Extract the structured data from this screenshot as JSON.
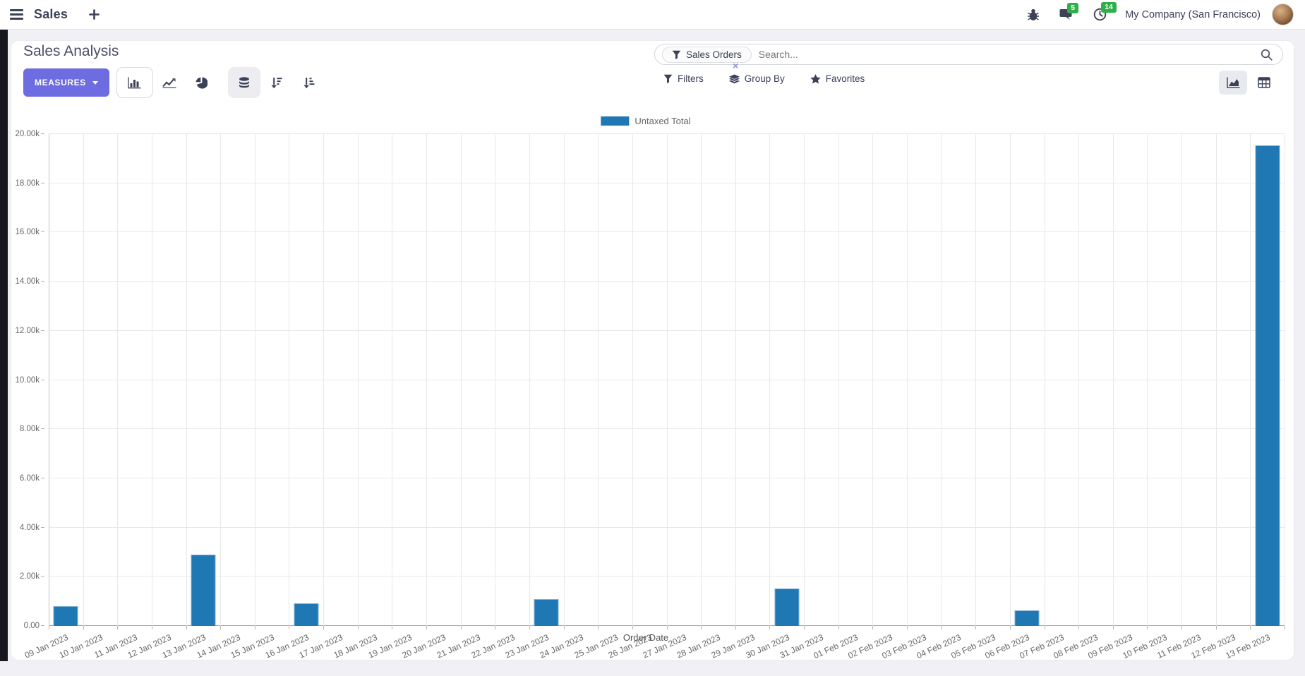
{
  "topbar": {
    "app_name": "Sales",
    "plus": "+",
    "messages_badge": "5",
    "activities_badge": "14",
    "company_name": "My Company (San Francisco)"
  },
  "control_panel": {
    "title": "Sales Analysis",
    "measures_button": "MEASURES",
    "search": {
      "facet_label": "Sales Orders",
      "facet_remove": "×",
      "placeholder": "Search..."
    },
    "filters_label": "Filters",
    "group_by_label": "Group By",
    "favorites_label": "Favorites"
  },
  "icons": {
    "topbar": [
      "hamburger-icon",
      "plus-icon",
      "bug-icon",
      "messages-icon",
      "activities-clock-icon",
      "avatar"
    ],
    "toolbar": [
      "bar-chart-icon",
      "line-chart-icon",
      "pie-chart-icon",
      "stacked-icon",
      "sort-desc-icon",
      "sort-asc-icon"
    ],
    "search": [
      "filter-funnel-icon",
      "search-icon",
      "group-by-layers-icon",
      "favorites-star-icon"
    ],
    "view_switcher": [
      "area-chart-view-icon",
      "pivot-view-icon"
    ]
  },
  "colors": {
    "accent_button": "#6d6ce0",
    "bar": "#1f77b4",
    "badge_green": "#2fae49",
    "topbar_text": "#3b4157",
    "page_background": "#f1f1f5"
  },
  "chart_data": {
    "type": "bar",
    "legend_label": "Untaxed Total",
    "legend_position": "top",
    "bar_color": "#1f77b4",
    "xlabel": "Order Date",
    "ylabel": "",
    "ylim": [
      0,
      20000
    ],
    "ytick_step": 2000,
    "ytick_labels": [
      "0.00",
      "2.00k",
      "4.00k",
      "6.00k",
      "8.00k",
      "10.00k",
      "12.00k",
      "14.00k",
      "16.00k",
      "18.00k",
      "20.00k"
    ],
    "grid": true,
    "categories": [
      "09 Jan 2023",
      "10 Jan 2023",
      "11 Jan 2023",
      "12 Jan 2023",
      "13 Jan 2023",
      "14 Jan 2023",
      "15 Jan 2023",
      "16 Jan 2023",
      "17 Jan 2023",
      "18 Jan 2023",
      "19 Jan 2023",
      "20 Jan 2023",
      "21 Jan 2023",
      "22 Jan 2023",
      "23 Jan 2023",
      "24 Jan 2023",
      "25 Jan 2023",
      "26 Jan 2023",
      "27 Jan 2023",
      "28 Jan 2023",
      "29 Jan 2023",
      "30 Jan 2023",
      "31 Jan 2023",
      "01 Feb 2023",
      "02 Feb 2023",
      "03 Feb 2023",
      "04 Feb 2023",
      "05 Feb 2023",
      "06 Feb 2023",
      "07 Feb 2023",
      "08 Feb 2023",
      "09 Feb 2023",
      "10 Feb 2023",
      "11 Feb 2023",
      "12 Feb 2023",
      "13 Feb 2023"
    ],
    "series": [
      {
        "name": "Untaxed Total",
        "values": [
          800,
          0,
          0,
          0,
          2910,
          0,
          0,
          910,
          0,
          0,
          0,
          0,
          0,
          0,
          1090,
          0,
          0,
          0,
          0,
          0,
          0,
          1510,
          0,
          0,
          0,
          0,
          0,
          0,
          630,
          0,
          0,
          0,
          0,
          0,
          0,
          19540
        ]
      }
    ]
  }
}
